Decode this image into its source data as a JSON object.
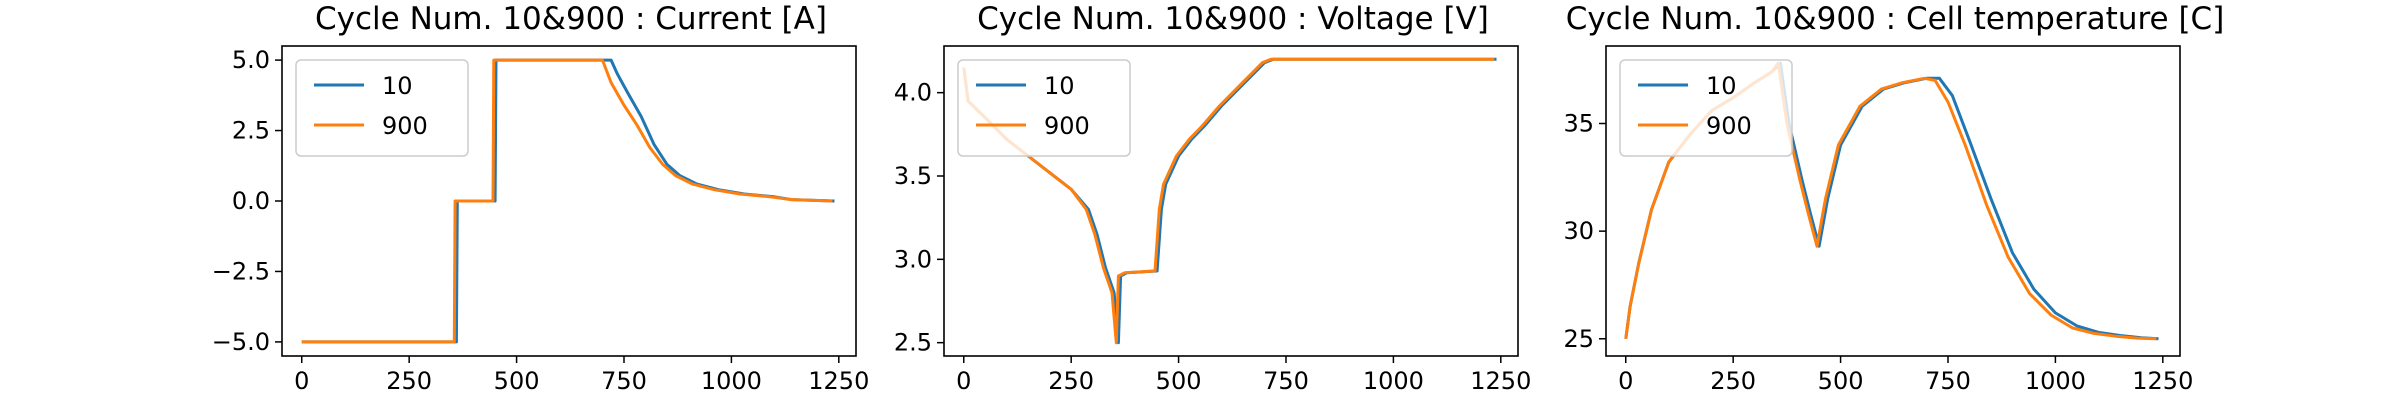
{
  "colors": {
    "series_10": "#1f77b4",
    "series_900": "#ff7f0e"
  },
  "chart_data": [
    {
      "type": "line",
      "title": "Cycle Num. 10&900 : Current [A]",
      "xlabel": "",
      "ylabel": "",
      "xlim": [
        -46,
        1290
      ],
      "ylim": [
        -5.5,
        5.5
      ],
      "xticks": [
        0,
        250,
        500,
        750,
        1000,
        1250
      ],
      "yticks": [
        -5.0,
        -2.5,
        0.0,
        2.5,
        5.0
      ],
      "ytick_labels": [
        "−5.0",
        "−2.5",
        "0.0",
        "2.5",
        "5.0"
      ],
      "grid": false,
      "legend": "upper left",
      "series": [
        {
          "name": "10",
          "x": [
            0,
            360,
            362,
            450,
            452,
            720,
            735,
            760,
            790,
            820,
            850,
            880,
            920,
            970,
            1030,
            1100,
            1140,
            1240
          ],
          "y": [
            -5,
            -5,
            0,
            0,
            5,
            5,
            4.5,
            3.8,
            3.0,
            2.0,
            1.3,
            0.9,
            0.6,
            0.4,
            0.25,
            0.15,
            0.05,
            0.0
          ]
        },
        {
          "name": "900",
          "x": [
            0,
            355,
            357,
            445,
            447,
            700,
            720,
            750,
            780,
            810,
            840,
            870,
            910,
            960,
            1020,
            1090,
            1140,
            1235
          ],
          "y": [
            -5,
            -5,
            0,
            0,
            5,
            5,
            4.2,
            3.4,
            2.7,
            1.9,
            1.3,
            0.9,
            0.6,
            0.4,
            0.25,
            0.15,
            0.05,
            0.0
          ]
        }
      ]
    },
    {
      "type": "line",
      "title": "Cycle Num. 10&900 : Voltage [V]",
      "xlabel": "",
      "ylabel": "",
      "xlim": [
        -46,
        1290
      ],
      "ylim": [
        2.42,
        4.28
      ],
      "xticks": [
        0,
        250,
        500,
        750,
        1000,
        1250
      ],
      "yticks": [
        2.5,
        3.0,
        3.5,
        4.0
      ],
      "ytick_labels": [
        "2.5",
        "3.0",
        "3.5",
        "4.0"
      ],
      "grid": false,
      "legend": "upper left",
      "series": [
        {
          "name": "10",
          "x": [
            0,
            10,
            50,
            100,
            150,
            200,
            250,
            290,
            310,
            330,
            350,
            360,
            365,
            380,
            450,
            460,
            470,
            500,
            530,
            560,
            600,
            650,
            700,
            720,
            1000,
            1240
          ],
          "y": [
            4.15,
            3.95,
            3.85,
            3.72,
            3.62,
            3.52,
            3.42,
            3.3,
            3.15,
            2.95,
            2.8,
            2.5,
            2.9,
            2.92,
            2.93,
            3.3,
            3.45,
            3.62,
            3.72,
            3.8,
            3.92,
            4.05,
            4.18,
            4.2,
            4.2,
            4.2
          ]
        },
        {
          "name": "900",
          "x": [
            0,
            10,
            50,
            100,
            150,
            200,
            250,
            285,
            305,
            325,
            345,
            355,
            360,
            375,
            445,
            455,
            465,
            495,
            525,
            555,
            595,
            645,
            695,
            715,
            1000,
            1235
          ],
          "y": [
            4.15,
            3.95,
            3.85,
            3.72,
            3.62,
            3.52,
            3.42,
            3.3,
            3.15,
            2.95,
            2.8,
            2.5,
            2.9,
            2.92,
            2.93,
            3.3,
            3.45,
            3.62,
            3.72,
            3.8,
            3.92,
            4.05,
            4.18,
            4.2,
            4.2,
            4.2
          ]
        }
      ]
    },
    {
      "type": "line",
      "title": "Cycle Num. 10&900 : Cell temperature [C]",
      "xlabel": "",
      "ylabel": "",
      "xlim": [
        -46,
        1290
      ],
      "ylim": [
        24.2,
        38.6
      ],
      "xticks": [
        0,
        250,
        500,
        750,
        1000,
        1250
      ],
      "yticks": [
        25,
        30,
        35
      ],
      "ytick_labels": [
        "25",
        "30",
        "35"
      ],
      "grid": false,
      "legend": "upper left",
      "series": [
        {
          "name": "10",
          "x": [
            0,
            10,
            30,
            60,
            100,
            150,
            200,
            250,
            300,
            340,
            360,
            380,
            410,
            430,
            450,
            470,
            500,
            550,
            600,
            650,
            700,
            730,
            760,
            800,
            850,
            900,
            950,
            1000,
            1050,
            1100,
            1150,
            1200,
            1240
          ],
          "y": [
            25,
            26.5,
            28.5,
            31,
            33.2,
            34.5,
            35.6,
            36.2,
            36.9,
            37.4,
            37.8,
            35,
            32.4,
            30.8,
            29.3,
            31.5,
            34,
            35.8,
            36.6,
            36.9,
            37.1,
            37.1,
            36.3,
            34.2,
            31.5,
            29,
            27.3,
            26.2,
            25.6,
            25.3,
            25.15,
            25.05,
            25.0
          ]
        },
        {
          "name": "900",
          "x": [
            0,
            10,
            30,
            60,
            100,
            150,
            200,
            250,
            300,
            340,
            355,
            375,
            405,
            425,
            445,
            465,
            495,
            545,
            595,
            645,
            695,
            720,
            750,
            790,
            840,
            890,
            940,
            990,
            1040,
            1090,
            1140,
            1190,
            1235
          ],
          "y": [
            25,
            26.5,
            28.5,
            31,
            33.2,
            34.5,
            35.6,
            36.2,
            36.9,
            37.4,
            37.8,
            35,
            32.4,
            30.8,
            29.3,
            31.5,
            34,
            35.8,
            36.6,
            36.9,
            37.1,
            37.0,
            36.0,
            34.0,
            31.2,
            28.8,
            27.1,
            26.1,
            25.5,
            25.25,
            25.12,
            25.03,
            25.0
          ]
        }
      ]
    }
  ]
}
